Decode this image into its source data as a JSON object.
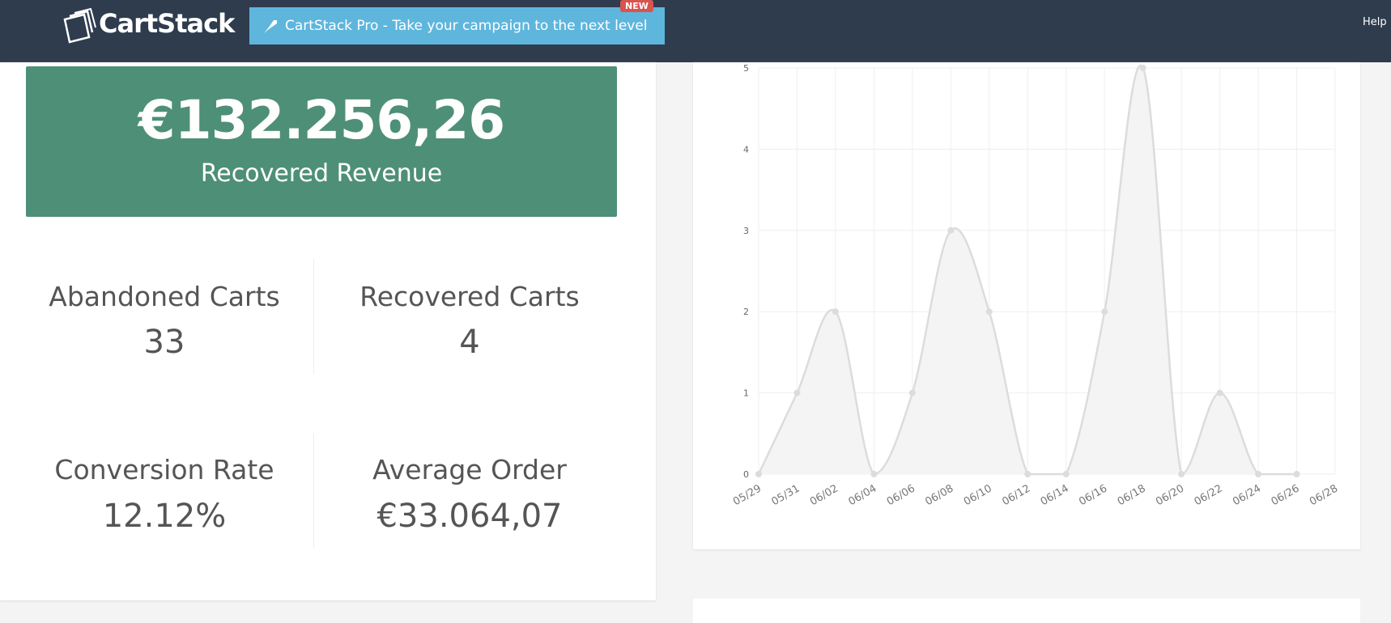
{
  "header": {
    "logo": "CartStack",
    "promo": "CartStack Pro - Take your campaign to the next level",
    "badge": "NEW",
    "help": "Help"
  },
  "revenue": {
    "value": "€132.256,26",
    "label": "Recovered Revenue"
  },
  "stats": [
    {
      "label": "Abandoned Carts",
      "value": "33"
    },
    {
      "label": "Recovered Carts",
      "value": "4"
    },
    {
      "label": "Conversion Rate",
      "value": "12.12%"
    },
    {
      "label": "Average Order",
      "value": "€33.064,07"
    }
  ],
  "chart_data": {
    "type": "line",
    "categories": [
      "05/29",
      "05/31",
      "06/02",
      "06/04",
      "06/06",
      "06/08",
      "06/10",
      "06/12",
      "06/14",
      "06/16",
      "06/18",
      "06/20",
      "06/22",
      "06/24",
      "06/26",
      "06/28"
    ],
    "values": [
      0,
      1,
      2,
      0,
      1,
      3,
      2,
      0,
      0,
      2,
      5,
      0,
      1,
      0,
      0,
      null
    ],
    "color": "#dcdcdc",
    "fill": "#f4f4f4",
    "ylim": [
      0,
      5
    ],
    "yticks": [
      0,
      1,
      2,
      3,
      4,
      5
    ],
    "grid": true
  }
}
